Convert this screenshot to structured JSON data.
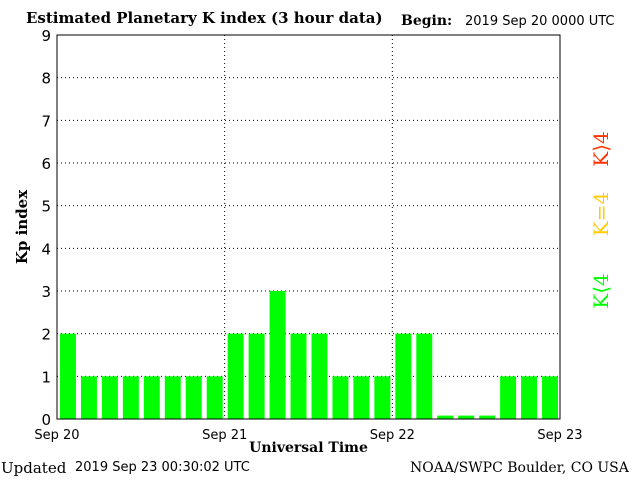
{
  "header": {
    "title": "Estimated Planetary K index (3 hour data)",
    "begin_label": "Begin:",
    "begin_value": "2019 Sep 20 0000 UTC"
  },
  "footer": {
    "updated_label": "Updated",
    "updated_value": "2019 Sep 23 00:30:02 UTC",
    "credit": "NOAA/SWPC Boulder, CO USA"
  },
  "legend": {
    "high": {
      "label": "K⟩4",
      "color": "#ff3300"
    },
    "eq": {
      "label": "K=4",
      "color": "#ffcc00"
    },
    "low": {
      "label": "K⟨4",
      "color": "#00ff00"
    }
  },
  "chart_data": {
    "type": "bar",
    "title": "Estimated Planetary K index (3 hour data)",
    "xlabel": "Universal Time",
    "ylabel": "Kp index",
    "ylim": [
      0,
      9
    ],
    "yticks": [
      "0",
      "1",
      "2",
      "3",
      "4",
      "5",
      "6",
      "7",
      "8",
      "9"
    ],
    "xtick_labels": [
      "Sep 20",
      "Sep 21",
      "Sep 22",
      "Sep 23"
    ],
    "bar_color": "#00ff00",
    "grid": true,
    "values": [
      2,
      1,
      1,
      1,
      1,
      1,
      1,
      1,
      2,
      2,
      3,
      2,
      2,
      1,
      1,
      1,
      2,
      2,
      0.08,
      0.08,
      0.08,
      1,
      1,
      1
    ]
  }
}
